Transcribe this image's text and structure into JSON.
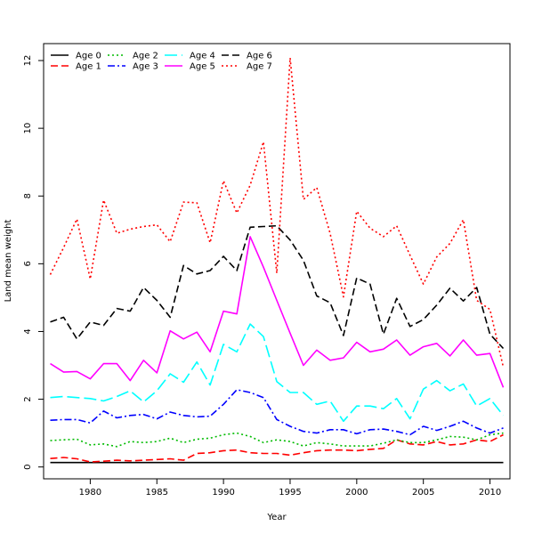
{
  "chart_data": {
    "type": "line",
    "xlabel": "Year",
    "ylabel": "Land mean weight",
    "xlim": [
      1976.5,
      2011.5
    ],
    "ylim": [
      -0.35,
      12.5
    ],
    "xticks": [
      1980,
      1985,
      1990,
      1995,
      2000,
      2005,
      2010
    ],
    "yticks": [
      0,
      2,
      4,
      6,
      8,
      10,
      12
    ],
    "legend_position": "top-left",
    "x": [
      1977,
      1978,
      1979,
      1980,
      1981,
      1982,
      1983,
      1984,
      1985,
      1986,
      1987,
      1988,
      1989,
      1990,
      1991,
      1992,
      1993,
      1994,
      1995,
      1996,
      1997,
      1998,
      1999,
      2000,
      2001,
      2002,
      2003,
      2004,
      2005,
      2006,
      2007,
      2008,
      2009,
      2010,
      2011
    ],
    "series": [
      {
        "name": "Age 0",
        "color": "#000000",
        "dash": "",
        "values": [
          0.13,
          0.13,
          0.13,
          0.13,
          0.13,
          0.13,
          0.13,
          0.13,
          0.13,
          0.13,
          0.13,
          0.13,
          0.13,
          0.13,
          0.13,
          0.13,
          0.13,
          0.13,
          0.13,
          0.13,
          0.13,
          0.13,
          0.13,
          0.13,
          0.13,
          0.13,
          0.13,
          0.13,
          0.13,
          0.13,
          0.13,
          0.13,
          0.13,
          0.13,
          0.13
        ]
      },
      {
        "name": "Age 1",
        "color": "#ff0000",
        "dash": "8,4",
        "values": [
          0.25,
          0.28,
          0.24,
          0.15,
          0.17,
          0.2,
          0.18,
          0.2,
          0.22,
          0.24,
          0.2,
          0.4,
          0.42,
          0.48,
          0.5,
          0.42,
          0.4,
          0.4,
          0.35,
          0.42,
          0.48,
          0.5,
          0.5,
          0.48,
          0.52,
          0.55,
          0.8,
          0.68,
          0.65,
          0.75,
          0.65,
          0.68,
          0.8,
          0.75,
          0.95
        ]
      },
      {
        "name": "Age 2",
        "color": "#00bb00",
        "dash": "2,3",
        "values": [
          0.78,
          0.8,
          0.82,
          0.65,
          0.68,
          0.6,
          0.75,
          0.72,
          0.75,
          0.85,
          0.72,
          0.82,
          0.85,
          0.95,
          1.0,
          0.9,
          0.72,
          0.8,
          0.75,
          0.62,
          0.72,
          0.68,
          0.62,
          0.62,
          0.62,
          0.7,
          0.8,
          0.72,
          0.72,
          0.8,
          0.9,
          0.88,
          0.8,
          0.95,
          1.0
        ]
      },
      {
        "name": "Age 3",
        "color": "#0000ff",
        "dash": "8,3,2,3",
        "values": [
          1.38,
          1.4,
          1.4,
          1.3,
          1.65,
          1.45,
          1.52,
          1.55,
          1.42,
          1.62,
          1.52,
          1.48,
          1.5,
          1.85,
          2.28,
          2.2,
          2.05,
          1.4,
          1.2,
          1.05,
          1.0,
          1.1,
          1.1,
          0.98,
          1.1,
          1.12,
          1.05,
          0.95,
          1.2,
          1.08,
          1.2,
          1.35,
          1.15,
          1.0,
          1.15
        ]
      },
      {
        "name": "Age 4",
        "color": "#00ffff",
        "dash": "14,5",
        "values": [
          2.05,
          2.08,
          2.05,
          2.02,
          1.95,
          2.08,
          2.25,
          1.92,
          2.25,
          2.75,
          2.5,
          3.1,
          2.42,
          3.62,
          3.4,
          4.22,
          3.85,
          2.52,
          2.2,
          2.2,
          1.85,
          1.95,
          1.35,
          1.8,
          1.8,
          1.72,
          2.02,
          1.42,
          2.3,
          2.55,
          2.25,
          2.45,
          1.8,
          2.02,
          1.52
        ]
      },
      {
        "name": "Age 5",
        "color": "#ff00ff",
        "dash": "",
        "values": [
          3.05,
          2.8,
          2.82,
          2.6,
          3.05,
          3.05,
          2.55,
          3.15,
          2.78,
          4.02,
          3.78,
          3.98,
          3.4,
          4.6,
          4.52,
          6.8,
          5.9,
          4.92,
          3.95,
          3.0,
          3.45,
          3.15,
          3.22,
          3.68,
          3.4,
          3.48,
          3.75,
          3.3,
          3.55,
          3.65,
          3.28,
          3.75,
          3.3,
          3.35,
          2.35
        ]
      },
      {
        "name": "Age 6",
        "color": "#000000",
        "dash": "8,4",
        "values": [
          4.28,
          4.42,
          3.78,
          4.28,
          4.18,
          4.68,
          4.6,
          5.3,
          4.92,
          4.42,
          5.95,
          5.7,
          5.8,
          6.22,
          5.8,
          7.08,
          7.1,
          7.12,
          6.7,
          6.1,
          5.05,
          4.85,
          3.88,
          5.58,
          5.4,
          3.92,
          4.98,
          4.15,
          4.35,
          4.78,
          5.28,
          4.9,
          5.3,
          3.92,
          3.5
        ]
      },
      {
        "name": "Age 7",
        "color": "#ff0000",
        "dash": "2,3",
        "values": [
          5.68,
          6.48,
          7.32,
          5.55,
          7.88,
          6.9,
          7.02,
          7.1,
          7.15,
          6.65,
          7.82,
          7.8,
          6.62,
          8.45,
          7.5,
          8.32,
          9.6,
          5.72,
          12.08,
          7.9,
          8.25,
          6.9,
          5.02,
          7.55,
          7.05,
          6.8,
          7.12,
          6.25,
          5.4,
          6.2,
          6.6,
          7.3,
          4.92,
          4.65,
          2.95
        ]
      }
    ]
  }
}
